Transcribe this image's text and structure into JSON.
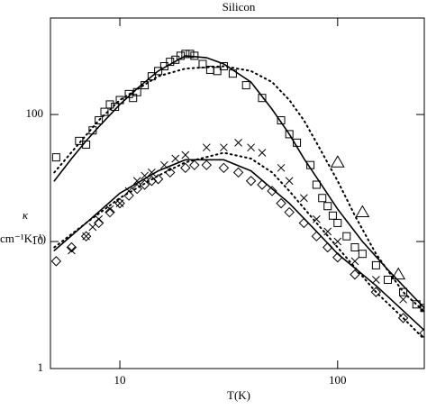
{
  "chart_data": {
    "type": "scatter",
    "title": "Silicon",
    "x_label": "T(K)",
    "y_label": "κ",
    "y_label_units": "cm⁻¹K⁻¹)",
    "xscale": "log",
    "yscale": "log",
    "xlim": [
      4.8,
      250
    ],
    "ylim": [
      1,
      575
    ],
    "xticks": [
      10,
      100
    ],
    "yticks": [
      1,
      10,
      100
    ],
    "series": [
      {
        "kind": "marker",
        "marker": "square",
        "color": "#000000",
        "x": [
          5.1,
          6.5,
          7,
          7.5,
          8,
          8.5,
          9,
          9.5,
          10,
          11,
          11.5,
          12,
          13,
          14,
          15,
          16,
          17,
          18,
          19,
          20,
          21,
          22,
          24,
          26,
          28,
          30,
          33,
          38,
          45,
          55,
          60,
          65,
          75,
          80,
          85,
          90,
          95,
          100,
          110,
          120,
          130,
          150,
          170,
          200,
          230,
          250
        ],
        "values": [
          46,
          62,
          58,
          75,
          90,
          105,
          120,
          115,
          130,
          145,
          135,
          150,
          170,
          200,
          220,
          240,
          260,
          270,
          290,
          300,
          300,
          290,
          250,
          225,
          220,
          240,
          210,
          170,
          135,
          90,
          70,
          60,
          40,
          28,
          22,
          19,
          16,
          14,
          11,
          9,
          8,
          6.5,
          5,
          4,
          3.2,
          3
        ]
      },
      {
        "kind": "marker",
        "marker": "cross",
        "color": "#000000",
        "x": [
          6,
          7,
          7.5,
          8,
          9,
          10,
          11,
          12,
          13,
          14,
          16,
          18,
          20,
          25,
          30,
          35,
          40,
          45,
          55,
          60,
          70,
          80,
          90,
          100,
          120,
          150,
          200,
          250
        ],
        "values": [
          8.5,
          11,
          13,
          15,
          18,
          20,
          25,
          30,
          33,
          35,
          40,
          45,
          48,
          55,
          55,
          60,
          55,
          50,
          38,
          30,
          22,
          15,
          12,
          10,
          7,
          5,
          3.5,
          3
        ]
      },
      {
        "kind": "marker",
        "marker": "diamond",
        "color": "#000000",
        "x": [
          5.1,
          6,
          7,
          8,
          9,
          10,
          11,
          12,
          13,
          14,
          15,
          17,
          20,
          22,
          25,
          30,
          35,
          40,
          45,
          50,
          55,
          60,
          70,
          80,
          90,
          100,
          120,
          150,
          200,
          250
        ],
        "values": [
          7,
          9,
          11,
          14,
          17,
          20,
          23,
          26,
          28,
          30,
          31,
          35,
          38,
          40,
          40,
          38,
          35,
          30,
          28,
          25,
          20,
          17,
          14,
          11,
          9,
          7.5,
          5.5,
          4,
          2.5,
          1.9
        ]
      },
      {
        "kind": "marker",
        "marker": "triangle",
        "color": "#000000",
        "x": [
          100,
          130,
          190
        ],
        "values": [
          42,
          17,
          5.5
        ]
      },
      {
        "kind": "line",
        "dash": "solid",
        "color": "#000000",
        "x": [
          5,
          6,
          7,
          8,
          10,
          12,
          15,
          20,
          25,
          30,
          40,
          50,
          60,
          70,
          80,
          100,
          130,
          170,
          250
        ],
        "values": [
          30,
          45,
          62,
          80,
          120,
          160,
          220,
          290,
          280,
          250,
          180,
          110,
          70,
          45,
          32,
          18,
          10,
          6,
          3
        ]
      },
      {
        "kind": "line",
        "dash": "solid",
        "color": "#000000",
        "x": [
          5,
          7,
          10,
          15,
          20,
          30,
          40,
          50,
          60,
          80,
          100,
          150,
          250
        ],
        "values": [
          8.5,
          14,
          24,
          36,
          44,
          44,
          36,
          26,
          20,
          12,
          8,
          4.5,
          2
        ]
      },
      {
        "kind": "line",
        "dash": "dotted",
        "color": "#000000",
        "x": [
          5,
          8,
          10,
          15,
          20,
          30,
          40,
          50,
          60,
          70,
          80,
          100,
          120,
          150,
          200,
          250
        ],
        "values": [
          35,
          90,
          130,
          200,
          230,
          240,
          220,
          180,
          130,
          90,
          60,
          30,
          16,
          8,
          4,
          2.8
        ]
      },
      {
        "kind": "line",
        "dash": "dotted",
        "color": "#000000",
        "x": [
          5,
          7,
          10,
          15,
          20,
          30,
          40,
          50,
          60,
          80,
          100,
          150,
          200,
          250
        ],
        "values": [
          9,
          14,
          22,
          33,
          42,
          50,
          45,
          35,
          25,
          14,
          9,
          4,
          2.5,
          1.7
        ]
      }
    ]
  }
}
